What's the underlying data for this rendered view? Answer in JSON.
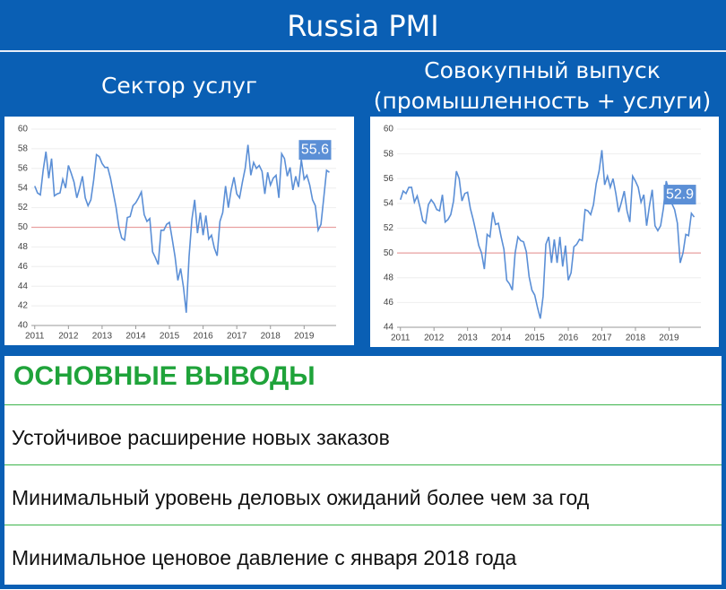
{
  "title": "Russia PMI",
  "chart_data": [
    {
      "type": "line",
      "title": "Сектор услуг",
      "color": "#5b8fd6",
      "hline": 50,
      "hline_color": "#e8a0a0",
      "grid": true,
      "x": [
        2011,
        2011.083,
        2011.167,
        2011.25,
        2011.333,
        2011.417,
        2011.5,
        2011.583,
        2011.667,
        2011.75,
        2011.833,
        2011.917,
        2012,
        2012.083,
        2012.167,
        2012.25,
        2012.333,
        2012.417,
        2012.5,
        2012.583,
        2012.667,
        2012.75,
        2012.833,
        2012.917,
        2013,
        2013.083,
        2013.167,
        2013.25,
        2013.333,
        2013.417,
        2013.5,
        2013.583,
        2013.667,
        2013.75,
        2013.833,
        2013.917,
        2014,
        2014.083,
        2014.167,
        2014.25,
        2014.333,
        2014.417,
        2014.5,
        2014.583,
        2014.667,
        2014.75,
        2014.833,
        2014.917,
        2015,
        2015.083,
        2015.167,
        2015.25,
        2015.333,
        2015.417,
        2015.5,
        2015.583,
        2015.667,
        2015.75,
        2015.833,
        2015.917,
        2016,
        2016.083,
        2016.167,
        2016.25,
        2016.333,
        2016.417,
        2016.5,
        2016.583,
        2016.667,
        2016.75,
        2016.833,
        2016.917,
        2017,
        2017.083,
        2017.167,
        2017.25,
        2017.333,
        2017.417,
        2017.5,
        2017.583,
        2017.667,
        2017.75,
        2017.833,
        2017.917,
        2018,
        2018.083,
        2018.167,
        2018.25,
        2018.333,
        2018.417,
        2018.5,
        2018.583,
        2018.667,
        2018.75,
        2018.833,
        2018.917,
        2019,
        2019.083,
        2019.167,
        2019.25,
        2019.333,
        2019.417,
        2019.5,
        2019.583,
        2019.667,
        2019.75
      ],
      "values": [
        54.2,
        53.5,
        53.3,
        55.8,
        57.7,
        55.0,
        57.0,
        53.2,
        53.4,
        53.5,
        54.9,
        54.0,
        56.3,
        55.5,
        54.6,
        53.0,
        54.0,
        55.2,
        53.0,
        52.2,
        52.8,
        54.8,
        57.4,
        57.2,
        56.5,
        56.1,
        56.1,
        55.0,
        53.5,
        52.0,
        50.0,
        48.9,
        48.7,
        51.0,
        51.1,
        52.2,
        52.5,
        53.0,
        53.6,
        51.3,
        50.6,
        50.9,
        47.5,
        46.9,
        46.2,
        49.7,
        49.7,
        50.3,
        50.5,
        48.8,
        47.0,
        44.6,
        45.8,
        43.9,
        41.3,
        47.0,
        50.8,
        52.8,
        49.4,
        51.5,
        49.2,
        51.2,
        48.8,
        49.2,
        47.9,
        47.1,
        50.6,
        51.5,
        54.2,
        52.0,
        53.8,
        55.1,
        53.4,
        53.0,
        54.6,
        56.0,
        58.4,
        55.3,
        56.6,
        56.0,
        56.3,
        55.7,
        53.4,
        55.6,
        54.3,
        55.0,
        55.3,
        53.0,
        57.5,
        57.0,
        55.2,
        56.1,
        53.8,
        55.2,
        54.1,
        56.9,
        54.9,
        55.3,
        54.3,
        52.8,
        52.2,
        49.7,
        50.3,
        53.0,
        55.8,
        55.6
      ],
      "last_label": 55.6,
      "xlim": [
        2010.9,
        2019.95
      ],
      "xticks": [
        2011,
        2012,
        2013,
        2014,
        2015,
        2016,
        2017,
        2018,
        2019
      ],
      "ylim": [
        40,
        60
      ],
      "yticks": [
        40,
        42,
        44,
        46,
        48,
        50,
        52,
        54,
        56,
        58,
        60
      ]
    },
    {
      "type": "line",
      "title": "Совокупный выпуск (промышленность + услуги)",
      "color": "#5b8fd6",
      "hline": 50,
      "hline_color": "#e8a0a0",
      "grid": true,
      "x": [
        2011,
        2011.083,
        2011.167,
        2011.25,
        2011.333,
        2011.417,
        2011.5,
        2011.583,
        2011.667,
        2011.75,
        2011.833,
        2011.917,
        2012,
        2012.083,
        2012.167,
        2012.25,
        2012.333,
        2012.417,
        2012.5,
        2012.583,
        2012.667,
        2012.75,
        2012.833,
        2012.917,
        2013,
        2013.083,
        2013.167,
        2013.25,
        2013.333,
        2013.417,
        2013.5,
        2013.583,
        2013.667,
        2013.75,
        2013.833,
        2013.917,
        2014,
        2014.083,
        2014.167,
        2014.25,
        2014.333,
        2014.417,
        2014.5,
        2014.583,
        2014.667,
        2014.75,
        2014.833,
        2014.917,
        2015,
        2015.083,
        2015.167,
        2015.25,
        2015.333,
        2015.417,
        2015.5,
        2015.583,
        2015.667,
        2015.75,
        2015.833,
        2015.917,
        2016,
        2016.083,
        2016.167,
        2016.25,
        2016.333,
        2016.417,
        2016.5,
        2016.583,
        2016.667,
        2016.75,
        2016.833,
        2016.917,
        2017,
        2017.083,
        2017.167,
        2017.25,
        2017.333,
        2017.417,
        2017.5,
        2017.583,
        2017.667,
        2017.75,
        2017.833,
        2017.917,
        2018,
        2018.083,
        2018.167,
        2018.25,
        2018.333,
        2018.417,
        2018.5,
        2018.583,
        2018.667,
        2018.75,
        2018.833,
        2018.917,
        2019,
        2019.083,
        2019.167,
        2019.25,
        2019.333,
        2019.417,
        2019.5,
        2019.583,
        2019.667,
        2019.75
      ],
      "values": [
        54.3,
        55.0,
        54.8,
        55.3,
        55.3,
        54.1,
        54.6,
        53.7,
        52.6,
        52.4,
        53.9,
        54.3,
        54.0,
        53.5,
        53.4,
        54.7,
        52.5,
        52.7,
        53.1,
        54.2,
        56.6,
        56.0,
        54.2,
        54.8,
        54.9,
        53.6,
        52.7,
        51.7,
        50.6,
        50.0,
        48.7,
        51.5,
        51.3,
        53.3,
        52.3,
        52.4,
        51.3,
        50.3,
        47.8,
        47.5,
        47.0,
        50.0,
        51.3,
        51.0,
        50.9,
        50.1,
        48.1,
        47.0,
        46.6,
        45.6,
        44.7,
        46.5,
        50.7,
        51.3,
        49.2,
        51.1,
        49.2,
        51.3,
        48.9,
        50.6,
        47.8,
        48.4,
        50.5,
        50.7,
        51.1,
        51.0,
        53.5,
        53.4,
        53.1,
        53.9,
        55.6,
        56.6,
        58.3,
        55.5,
        56.2,
        55.3,
        56.0,
        54.8,
        53.3,
        54.1,
        55.0,
        53.4,
        52.5,
        56.2,
        55.8,
        55.3,
        54.1,
        54.7,
        52.2,
        53.8,
        55.1,
        52.2,
        51.8,
        52.2,
        53.6,
        55.8,
        55.0,
        54.0,
        53.5,
        52.4,
        49.2,
        50.0,
        51.5,
        51.4,
        53.2,
        52.9
      ],
      "last_label": 52.9,
      "xlim": [
        2010.9,
        2019.95
      ],
      "xticks": [
        2011,
        2012,
        2013,
        2014,
        2015,
        2016,
        2017,
        2018,
        2019
      ],
      "ylim": [
        44,
        60
      ],
      "yticks": [
        44,
        46,
        48,
        50,
        52,
        54,
        56,
        58,
        60
      ]
    }
  ],
  "conclusions": {
    "title": "ОСНОВНЫЕ ВЫВОДЫ",
    "items": [
      "Устойчивое расширение новых заказов",
      "Минимальный уровень деловых ожиданий более чем за год",
      "Минимальное ценовое давление с января 2018 года"
    ]
  }
}
